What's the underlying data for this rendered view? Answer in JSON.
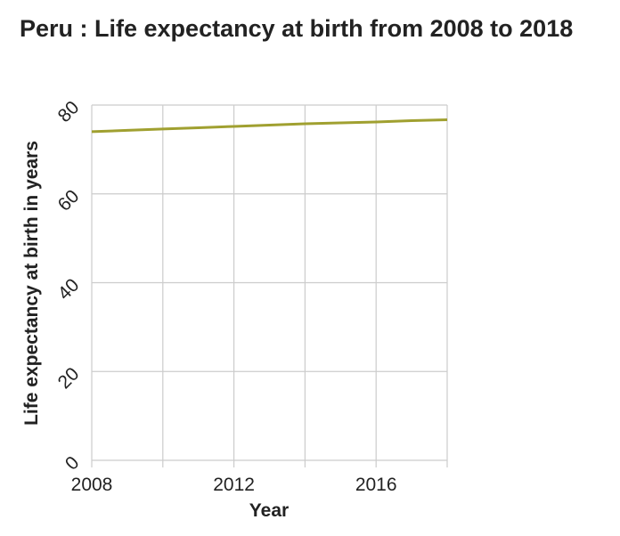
{
  "colors": {
    "line": "#a0a030",
    "grid": "#cccccc",
    "text": "#222222"
  },
  "chart_data": {
    "type": "line",
    "title": "Peru : Life expectancy at birth from 2008 to 2018",
    "xlabel": "Year",
    "ylabel": "Life expectancy at birth in years",
    "x": [
      2008,
      2009,
      2010,
      2011,
      2012,
      2013,
      2014,
      2015,
      2016,
      2017,
      2018
    ],
    "series": [
      {
        "values": [
          74.0,
          74.3,
          74.6,
          74.9,
          75.2,
          75.5,
          75.8,
          76.0,
          76.2,
          76.5,
          76.7
        ]
      }
    ],
    "xlim": [
      2008,
      2018
    ],
    "ylim": [
      0,
      80
    ],
    "xticks": [
      2008,
      2010,
      2012,
      2014,
      2016,
      2018
    ],
    "xtick_labels": [
      "2008",
      "2012",
      "2016"
    ],
    "yticks": [
      0,
      20,
      40,
      60,
      80
    ],
    "grid": true,
    "legend": "none"
  }
}
